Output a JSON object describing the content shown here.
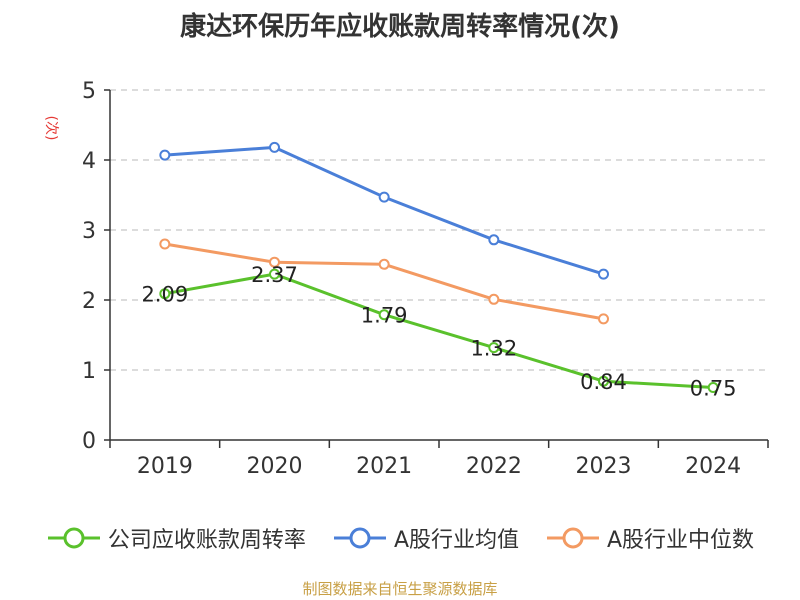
{
  "title": "康达环保历年应收账款周转率情况(次)",
  "source": "制图数据来自恒生聚源数据库",
  "chart_data": {
    "type": "line",
    "title": "康达环保历年应收账款周转率情况(次)",
    "ylabel": "(次)",
    "xlabel": "",
    "categories": [
      "2019",
      "2020",
      "2021",
      "2022",
      "2023",
      "2024"
    ],
    "ylim": [
      0,
      5
    ],
    "yticks": [
      0,
      1,
      2,
      3,
      4,
      5
    ],
    "grid": true,
    "legend_position": "bottom",
    "series": [
      {
        "name": "公司应收账款周转率",
        "color": "#5ac12c",
        "values": [
          2.09,
          2.37,
          1.79,
          1.32,
          0.84,
          0.75
        ],
        "labels": [
          "2.09",
          "2.37",
          "1.79",
          "1.32",
          "0.84",
          "0.75"
        ]
      },
      {
        "name": "A股行业均值",
        "color": "#4a7fd8",
        "values": [
          4.07,
          4.18,
          3.47,
          2.86,
          2.37,
          null
        ]
      },
      {
        "name": "A股行业中位数",
        "color": "#f39a62",
        "values": [
          2.8,
          2.54,
          2.51,
          2.01,
          1.73,
          null
        ]
      }
    ]
  }
}
